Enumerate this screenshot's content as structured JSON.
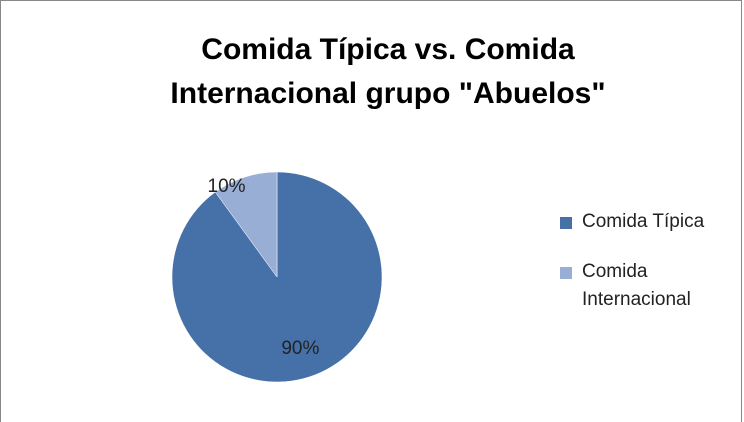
{
  "chart_data": {
    "type": "pie",
    "title": "Comida Típica vs. Comida Internacional grupo \"Abuelos\"",
    "categories": [
      "Comida Típica",
      "Comida Internacional"
    ],
    "values": [
      90,
      10
    ],
    "value_labels": [
      "90%",
      "10%"
    ],
    "colors": [
      "#4571a8",
      "#98aed4"
    ],
    "legend": "right"
  }
}
